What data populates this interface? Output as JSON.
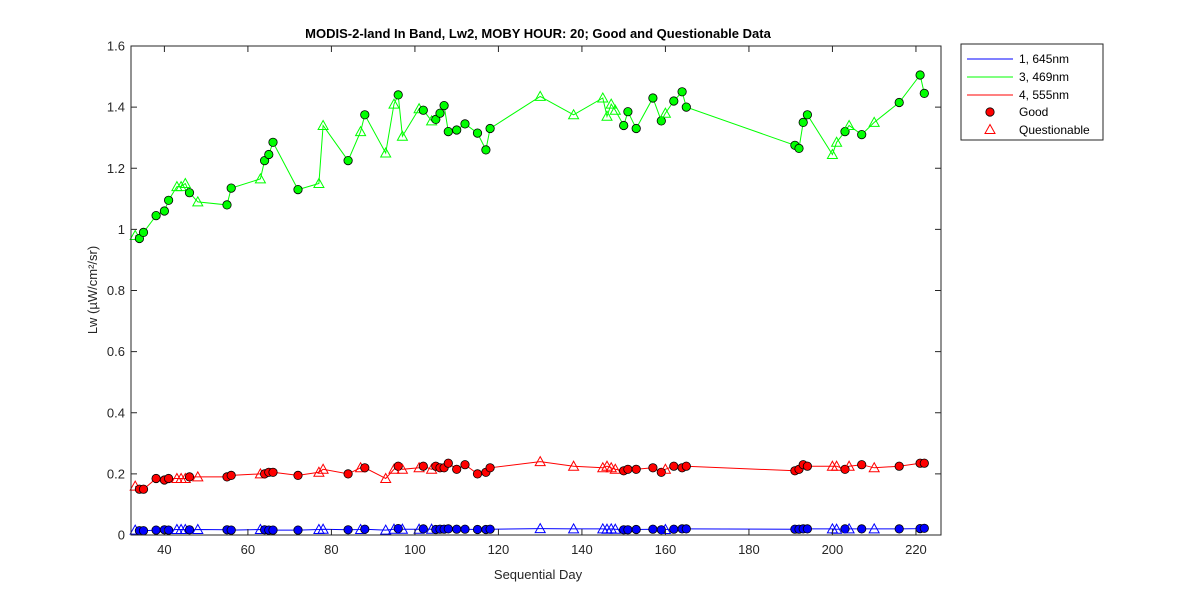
{
  "chart_data": {
    "type": "line",
    "title": "MODIS-2-land In Band,  Lw2, MOBY HOUR: 20;  Good and Questionable Data",
    "xlabel": "Sequential Day",
    "ylabel": "Lw (µW/cm²/sr)",
    "xlim": [
      32,
      226
    ],
    "ylim": [
      0,
      1.6
    ],
    "xticks": [
      40,
      60,
      80,
      100,
      120,
      140,
      160,
      180,
      200,
      220
    ],
    "yticks": [
      0,
      0.2,
      0.4,
      0.6,
      0.8,
      1,
      1.2,
      1.4,
      1.6
    ],
    "grid": false,
    "legend_placement": "outside-top-right",
    "legend": [
      "1, 645nm",
      "3, 469nm",
      "4, 555nm",
      "Good",
      "Questionable"
    ],
    "colors": {
      "band1": "#0000ff",
      "band3": "#00ff00",
      "band4": "#ff0000",
      "marker_good": "#ff0000",
      "marker_questionable": "#ff0000"
    },
    "series": [
      {
        "name": "1, 645nm",
        "color": "#0000ff",
        "points": [
          [
            33,
            0.016,
            "q"
          ],
          [
            34,
            0.014,
            "g"
          ],
          [
            35,
            0.014,
            "g"
          ],
          [
            38,
            0.016,
            "g"
          ],
          [
            40,
            0.017,
            "g"
          ],
          [
            41,
            0.016,
            "g"
          ],
          [
            43,
            0.018,
            "q"
          ],
          [
            44,
            0.018,
            "q"
          ],
          [
            45,
            0.018,
            "q"
          ],
          [
            46,
            0.017,
            "g"
          ],
          [
            48,
            0.018,
            "q"
          ],
          [
            55,
            0.017,
            "g"
          ],
          [
            56,
            0.016,
            "g"
          ],
          [
            63,
            0.018,
            "q"
          ],
          [
            64,
            0.017,
            "g"
          ],
          [
            65,
            0.016,
            "g"
          ],
          [
            66,
            0.016,
            "g"
          ],
          [
            72,
            0.016,
            "g"
          ],
          [
            77,
            0.018,
            "q"
          ],
          [
            78,
            0.019,
            "q"
          ],
          [
            84,
            0.017,
            "g"
          ],
          [
            87,
            0.018,
            "q"
          ],
          [
            88,
            0.019,
            "g"
          ],
          [
            93,
            0.016,
            "q"
          ],
          [
            95,
            0.019,
            "q"
          ],
          [
            96,
            0.021,
            "g"
          ],
          [
            97,
            0.019,
            "q"
          ],
          [
            101,
            0.019,
            "q"
          ],
          [
            102,
            0.02,
            "g"
          ],
          [
            104,
            0.019,
            "q"
          ],
          [
            105,
            0.018,
            "g"
          ],
          [
            106,
            0.019,
            "g"
          ],
          [
            107,
            0.019,
            "g"
          ],
          [
            108,
            0.02,
            "g"
          ],
          [
            110,
            0.019,
            "g"
          ],
          [
            112,
            0.019,
            "g"
          ],
          [
            115,
            0.018,
            "g"
          ],
          [
            117,
            0.018,
            "g"
          ],
          [
            118,
            0.019,
            "g"
          ],
          [
            130,
            0.021,
            "q"
          ],
          [
            138,
            0.02,
            "q"
          ],
          [
            145,
            0.02,
            "q"
          ],
          [
            146,
            0.019,
            "q"
          ],
          [
            147,
            0.02,
            "q"
          ],
          [
            148,
            0.019,
            "q"
          ],
          [
            150,
            0.017,
            "g"
          ],
          [
            151,
            0.017,
            "g"
          ],
          [
            153,
            0.018,
            "g"
          ],
          [
            157,
            0.019,
            "g"
          ],
          [
            159,
            0.017,
            "g"
          ],
          [
            160,
            0.018,
            "q"
          ],
          [
            162,
            0.019,
            "g"
          ],
          [
            164,
            0.02,
            "g"
          ],
          [
            165,
            0.02,
            "g"
          ],
          [
            191,
            0.019,
            "g"
          ],
          [
            192,
            0.019,
            "g"
          ],
          [
            193,
            0.02,
            "g"
          ],
          [
            194,
            0.02,
            "g"
          ],
          [
            200,
            0.02,
            "q"
          ],
          [
            201,
            0.019,
            "q"
          ],
          [
            203,
            0.02,
            "g"
          ],
          [
            204,
            0.02,
            "q"
          ],
          [
            207,
            0.02,
            "g"
          ],
          [
            210,
            0.02,
            "q"
          ],
          [
            216,
            0.02,
            "g"
          ],
          [
            221,
            0.021,
            "g"
          ],
          [
            222,
            0.022,
            "g"
          ]
        ]
      },
      {
        "name": "3, 469nm",
        "color": "#00ff00",
        "points": [
          [
            33,
            0.98,
            "q"
          ],
          [
            34,
            0.97,
            "g"
          ],
          [
            35,
            0.99,
            "g"
          ],
          [
            38,
            1.045,
            "g"
          ],
          [
            40,
            1.06,
            "g"
          ],
          [
            41,
            1.095,
            "g"
          ],
          [
            43,
            1.14,
            "q"
          ],
          [
            44,
            1.14,
            "q"
          ],
          [
            45,
            1.15,
            "q"
          ],
          [
            46,
            1.12,
            "g"
          ],
          [
            48,
            1.09,
            "q"
          ],
          [
            55,
            1.08,
            "g"
          ],
          [
            56,
            1.135,
            "g"
          ],
          [
            63,
            1.165,
            "q"
          ],
          [
            64,
            1.225,
            "g"
          ],
          [
            65,
            1.245,
            "g"
          ],
          [
            66,
            1.285,
            "g"
          ],
          [
            72,
            1.13,
            "g"
          ],
          [
            77,
            1.15,
            "q"
          ],
          [
            78,
            1.34,
            "q"
          ],
          [
            84,
            1.225,
            "g"
          ],
          [
            87,
            1.32,
            "q"
          ],
          [
            88,
            1.375,
            "g"
          ],
          [
            93,
            1.25,
            "q"
          ],
          [
            95,
            1.41,
            "q"
          ],
          [
            96,
            1.44,
            "g"
          ],
          [
            97,
            1.305,
            "q"
          ],
          [
            101,
            1.395,
            "q"
          ],
          [
            102,
            1.39,
            "g"
          ],
          [
            104,
            1.355,
            "q"
          ],
          [
            105,
            1.36,
            "g"
          ],
          [
            106,
            1.38,
            "g"
          ],
          [
            107,
            1.405,
            "g"
          ],
          [
            108,
            1.32,
            "g"
          ],
          [
            110,
            1.325,
            "g"
          ],
          [
            112,
            1.345,
            "g"
          ],
          [
            115,
            1.315,
            "g"
          ],
          [
            117,
            1.26,
            "g"
          ],
          [
            118,
            1.33,
            "g"
          ],
          [
            130,
            1.435,
            "q"
          ],
          [
            138,
            1.375,
            "q"
          ],
          [
            145,
            1.43,
            "q"
          ],
          [
            146,
            1.37,
            "q"
          ],
          [
            147,
            1.41,
            "q"
          ],
          [
            148,
            1.39,
            "q"
          ],
          [
            150,
            1.34,
            "g"
          ],
          [
            151,
            1.385,
            "g"
          ],
          [
            153,
            1.33,
            "g"
          ],
          [
            157,
            1.43,
            "g"
          ],
          [
            159,
            1.355,
            "g"
          ],
          [
            160,
            1.38,
            "q"
          ],
          [
            162,
            1.42,
            "g"
          ],
          [
            164,
            1.45,
            "g"
          ],
          [
            165,
            1.4,
            "g"
          ],
          [
            191,
            1.275,
            "g"
          ],
          [
            192,
            1.265,
            "g"
          ],
          [
            193,
            1.35,
            "g"
          ],
          [
            194,
            1.375,
            "g"
          ],
          [
            200,
            1.245,
            "q"
          ],
          [
            201,
            1.285,
            "q"
          ],
          [
            203,
            1.32,
            "g"
          ],
          [
            204,
            1.34,
            "q"
          ],
          [
            207,
            1.31,
            "g"
          ],
          [
            210,
            1.35,
            "q"
          ],
          [
            216,
            1.415,
            "g"
          ],
          [
            221,
            1.505,
            "g"
          ],
          [
            222,
            1.445,
            "g"
          ]
        ]
      },
      {
        "name": "4, 555nm",
        "color": "#ff0000",
        "points": [
          [
            33,
            0.16,
            "q"
          ],
          [
            34,
            0.15,
            "g"
          ],
          [
            35,
            0.15,
            "g"
          ],
          [
            38,
            0.185,
            "g"
          ],
          [
            40,
            0.18,
            "g"
          ],
          [
            41,
            0.185,
            "g"
          ],
          [
            43,
            0.185,
            "q"
          ],
          [
            44,
            0.185,
            "q"
          ],
          [
            45,
            0.185,
            "q"
          ],
          [
            46,
            0.19,
            "g"
          ],
          [
            48,
            0.19,
            "q"
          ],
          [
            55,
            0.19,
            "g"
          ],
          [
            56,
            0.195,
            "g"
          ],
          [
            63,
            0.2,
            "q"
          ],
          [
            64,
            0.2,
            "g"
          ],
          [
            65,
            0.205,
            "g"
          ],
          [
            66,
            0.205,
            "g"
          ],
          [
            72,
            0.195,
            "g"
          ],
          [
            77,
            0.205,
            "q"
          ],
          [
            78,
            0.215,
            "q"
          ],
          [
            84,
            0.2,
            "g"
          ],
          [
            87,
            0.22,
            "q"
          ],
          [
            88,
            0.22,
            "g"
          ],
          [
            93,
            0.185,
            "q"
          ],
          [
            95,
            0.215,
            "q"
          ],
          [
            96,
            0.225,
            "g"
          ],
          [
            97,
            0.215,
            "q"
          ],
          [
            101,
            0.22,
            "q"
          ],
          [
            102,
            0.225,
            "g"
          ],
          [
            104,
            0.215,
            "q"
          ],
          [
            105,
            0.225,
            "g"
          ],
          [
            106,
            0.22,
            "g"
          ],
          [
            107,
            0.22,
            "g"
          ],
          [
            108,
            0.235,
            "g"
          ],
          [
            110,
            0.215,
            "g"
          ],
          [
            112,
            0.23,
            "g"
          ],
          [
            115,
            0.2,
            "g"
          ],
          [
            117,
            0.205,
            "g"
          ],
          [
            118,
            0.22,
            "g"
          ],
          [
            130,
            0.24,
            "q"
          ],
          [
            138,
            0.225,
            "q"
          ],
          [
            145,
            0.22,
            "q"
          ],
          [
            146,
            0.225,
            "q"
          ],
          [
            147,
            0.22,
            "q"
          ],
          [
            148,
            0.215,
            "q"
          ],
          [
            150,
            0.21,
            "g"
          ],
          [
            151,
            0.215,
            "g"
          ],
          [
            153,
            0.215,
            "g"
          ],
          [
            157,
            0.22,
            "g"
          ],
          [
            159,
            0.205,
            "g"
          ],
          [
            160,
            0.215,
            "q"
          ],
          [
            162,
            0.225,
            "g"
          ],
          [
            164,
            0.22,
            "g"
          ],
          [
            165,
            0.225,
            "g"
          ],
          [
            191,
            0.21,
            "g"
          ],
          [
            192,
            0.215,
            "g"
          ],
          [
            193,
            0.23,
            "g"
          ],
          [
            194,
            0.225,
            "g"
          ],
          [
            200,
            0.225,
            "q"
          ],
          [
            201,
            0.225,
            "q"
          ],
          [
            203,
            0.215,
            "g"
          ],
          [
            204,
            0.225,
            "q"
          ],
          [
            207,
            0.23,
            "g"
          ],
          [
            210,
            0.22,
            "q"
          ],
          [
            216,
            0.225,
            "g"
          ],
          [
            221,
            0.235,
            "g"
          ],
          [
            222,
            0.235,
            "g"
          ]
        ]
      }
    ]
  }
}
